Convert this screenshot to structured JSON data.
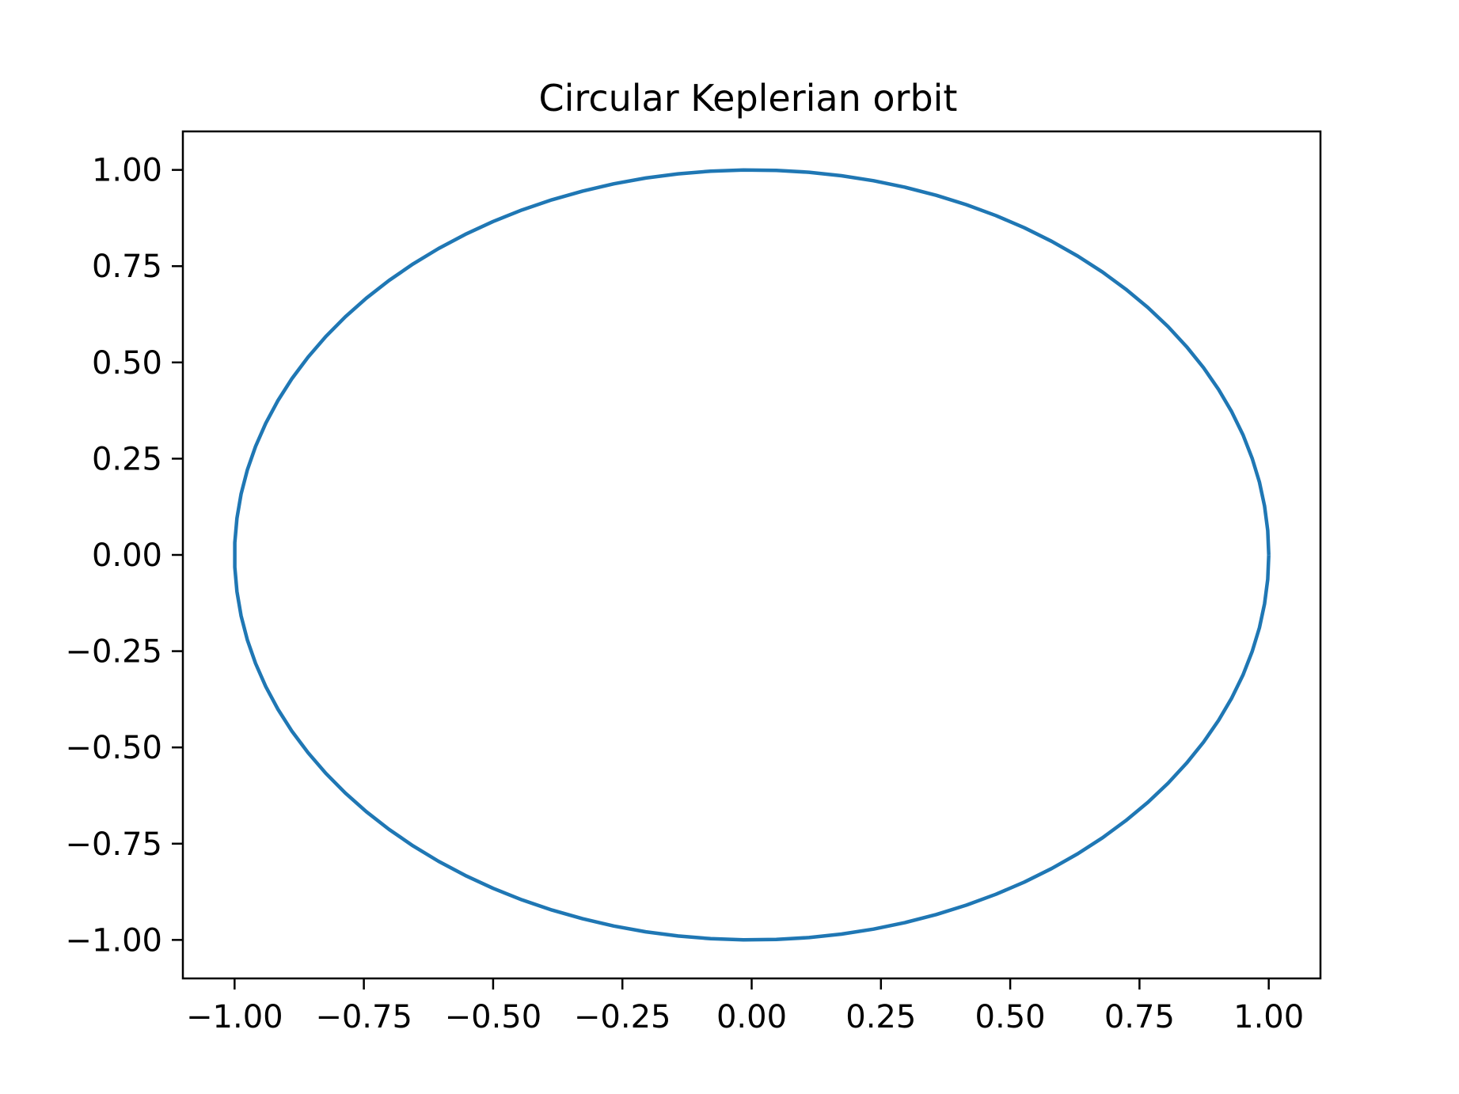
{
  "chart_data": {
    "type": "line",
    "title": "Circular Keplerian orbit",
    "xlabel": "",
    "ylabel": "",
    "xlim": [
      -1.1,
      1.1
    ],
    "ylim": [
      -1.1,
      1.1
    ],
    "grid": false,
    "series": [
      {
        "shape": "circle",
        "center": [
          0,
          0
        ],
        "radius": 1.0,
        "num_points": 100,
        "color": "#1f77b4"
      }
    ],
    "xticks": [
      -1.0,
      -0.75,
      -0.5,
      -0.25,
      0.0,
      0.25,
      0.5,
      0.75,
      1.0
    ],
    "xtick_labels": [
      "−1.00",
      "−0.75",
      "−0.50",
      "−0.25",
      "0.00",
      "0.25",
      "0.50",
      "0.75",
      "1.00"
    ],
    "yticks": [
      1.0,
      0.75,
      0.5,
      0.25,
      0.0,
      -0.25,
      -0.5,
      -0.75,
      -1.0
    ],
    "ytick_labels": [
      "1.00",
      "0.75",
      "0.50",
      "0.25",
      "0.00",
      "−0.25",
      "−0.50",
      "−0.75",
      "−1.00"
    ]
  }
}
